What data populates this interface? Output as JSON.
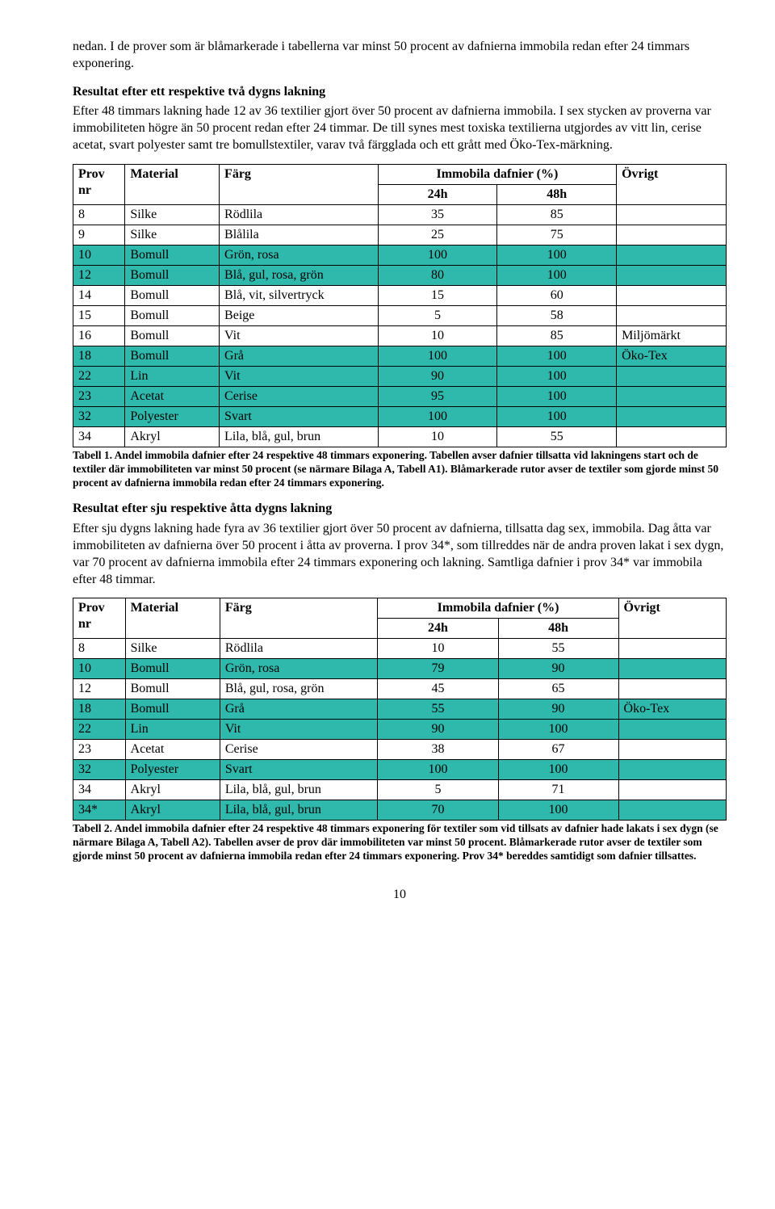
{
  "colors": {
    "highlight": "#2fb9ac",
    "border": "#000000",
    "text": "#000000",
    "background": "#ffffff"
  },
  "intro": {
    "p1": "nedan. I de prover som är blåmarkerade i tabellerna var minst 50 procent av dafnierna immobila redan efter 24 timmars exponering."
  },
  "section1": {
    "heading": "Resultat efter ett respektive två dygns lakning",
    "body": "Efter 48 timmars lakning hade 12 av 36 textilier gjort över 50 procent av dafnierna immobila. I sex stycken av proverna var immobiliteten högre än 50 procent redan efter 24 timmar. De till synes mest toxiska textilierna utgjordes av vitt lin, cerise acetat, svart polyester samt tre bomullstextiler, varav två färgglada och ett grått med Öko-Tex-märkning."
  },
  "table_header": {
    "prov": "Prov",
    "nr": "nr",
    "material": "Material",
    "farg": "Färg",
    "immobila": "Immobila dafnier (%)",
    "h24": "24h",
    "h48": "48h",
    "ovrigt": "Övrigt"
  },
  "table1": {
    "rows": [
      {
        "nr": "8",
        "mat": "Silke",
        "farg": "Rödlila",
        "h24": "35",
        "h48": "85",
        "ov": "",
        "hl": false
      },
      {
        "nr": "9",
        "mat": "Silke",
        "farg": "Blålila",
        "h24": "25",
        "h48": "75",
        "ov": "",
        "hl": false
      },
      {
        "nr": "10",
        "mat": "Bomull",
        "farg": "Grön, rosa",
        "h24": "100",
        "h48": "100",
        "ov": "",
        "hl": true
      },
      {
        "nr": "12",
        "mat": "Bomull",
        "farg": "Blå, gul, rosa, grön",
        "h24": "80",
        "h48": "100",
        "ov": "",
        "hl": true
      },
      {
        "nr": "14",
        "mat": "Bomull",
        "farg": "Blå, vit, silvertryck",
        "h24": "15",
        "h48": "60",
        "ov": "",
        "hl": false
      },
      {
        "nr": "15",
        "mat": "Bomull",
        "farg": "Beige",
        "h24": "5",
        "h48": "58",
        "ov": "",
        "hl": false
      },
      {
        "nr": "16",
        "mat": "Bomull",
        "farg": "Vit",
        "h24": "10",
        "h48": "85",
        "ov": "Miljömärkt",
        "hl": false
      },
      {
        "nr": "18",
        "mat": "Bomull",
        "farg": "Grå",
        "h24": "100",
        "h48": "100",
        "ov": "Öko-Tex",
        "hl": true
      },
      {
        "nr": "22",
        "mat": "Lin",
        "farg": "Vit",
        "h24": "90",
        "h48": "100",
        "ov": "",
        "hl": true
      },
      {
        "nr": "23",
        "mat": "Acetat",
        "farg": "Cerise",
        "h24": "95",
        "h48": "100",
        "ov": "",
        "hl": true
      },
      {
        "nr": "32",
        "mat": "Polyester",
        "farg": "Svart",
        "h24": "100",
        "h48": "100",
        "ov": "",
        "hl": true
      },
      {
        "nr": "34",
        "mat": "Akryl",
        "farg": "Lila, blå, gul, brun",
        "h24": "10",
        "h48": "55",
        "ov": "",
        "hl": false
      }
    ],
    "caption": "Tabell 1. Andel immobila dafnier efter 24 respektive 48 timmars exponering. Tabellen avser dafnier tillsatta vid lakningens start och de textiler där immobiliteten var minst 50 procent (se närmare Bilaga A, Tabell A1).  Blåmarkerade rutor avser de textiler som gjorde minst 50 procent av dafnierna immobila redan efter 24 timmars exponering."
  },
  "section2": {
    "heading": "Resultat efter sju respektive åtta dygns lakning",
    "body": "Efter sju dygns lakning hade fyra av 36 textilier gjort över 50 procent av dafnierna, tillsatta dag sex, immobila. Dag åtta var immobiliteten av dafnierna över 50 procent i åtta av proverna. I prov 34*, som tillreddes när de andra proven lakat i sex dygn, var 70 procent av dafnierna immobila efter 24 timmars exponering och lakning. Samtliga dafnier i prov 34* var immobila efter 48 timmar."
  },
  "table2": {
    "rows": [
      {
        "nr": "8",
        "mat": "Silke",
        "farg": "Rödlila",
        "h24": "10",
        "h48": "55",
        "ov": "",
        "hl": false
      },
      {
        "nr": "10",
        "mat": "Bomull",
        "farg": "Grön, rosa",
        "h24": "79",
        "h48": "90",
        "ov": "",
        "hl": true
      },
      {
        "nr": "12",
        "mat": "Bomull",
        "farg": "Blå, gul, rosa, grön",
        "h24": "45",
        "h48": "65",
        "ov": "",
        "hl": false
      },
      {
        "nr": "18",
        "mat": "Bomull",
        "farg": "Grå",
        "h24": "55",
        "h48": "90",
        "ov": "Öko-Tex",
        "hl": true
      },
      {
        "nr": "22",
        "mat": "Lin",
        "farg": "Vit",
        "h24": "90",
        "h48": "100",
        "ov": "",
        "hl": true
      },
      {
        "nr": "23",
        "mat": "Acetat",
        "farg": "Cerise",
        "h24": "38",
        "h48": "67",
        "ov": "",
        "hl": false
      },
      {
        "nr": "32",
        "mat": "Polyester",
        "farg": "Svart",
        "h24": "100",
        "h48": "100",
        "ov": "",
        "hl": true
      },
      {
        "nr": "34",
        "mat": "Akryl",
        "farg": "Lila, blå, gul, brun",
        "h24": "5",
        "h48": "71",
        "ov": "",
        "hl": false
      },
      {
        "nr": "34*",
        "mat": "Akryl",
        "farg": "Lila, blå, gul, brun",
        "h24": "70",
        "h48": "100",
        "ov": "",
        "hl": true
      }
    ],
    "caption": "Tabell 2. Andel immobila dafnier efter 24 respektive 48 timmars exponering för textiler som vid tillsats av dafnier hade lakats i sex dygn (se närmare Bilaga A, Tabell A2). Tabellen avser de prov där immobiliteten var minst 50 procent. Blåmarkerade rutor avser de textiler som gjorde minst 50 procent av dafnierna immobila redan efter 24 timmars exponering.  Prov 34* bereddes samtidigt som dafnier tillsattes."
  },
  "page_number": "10"
}
